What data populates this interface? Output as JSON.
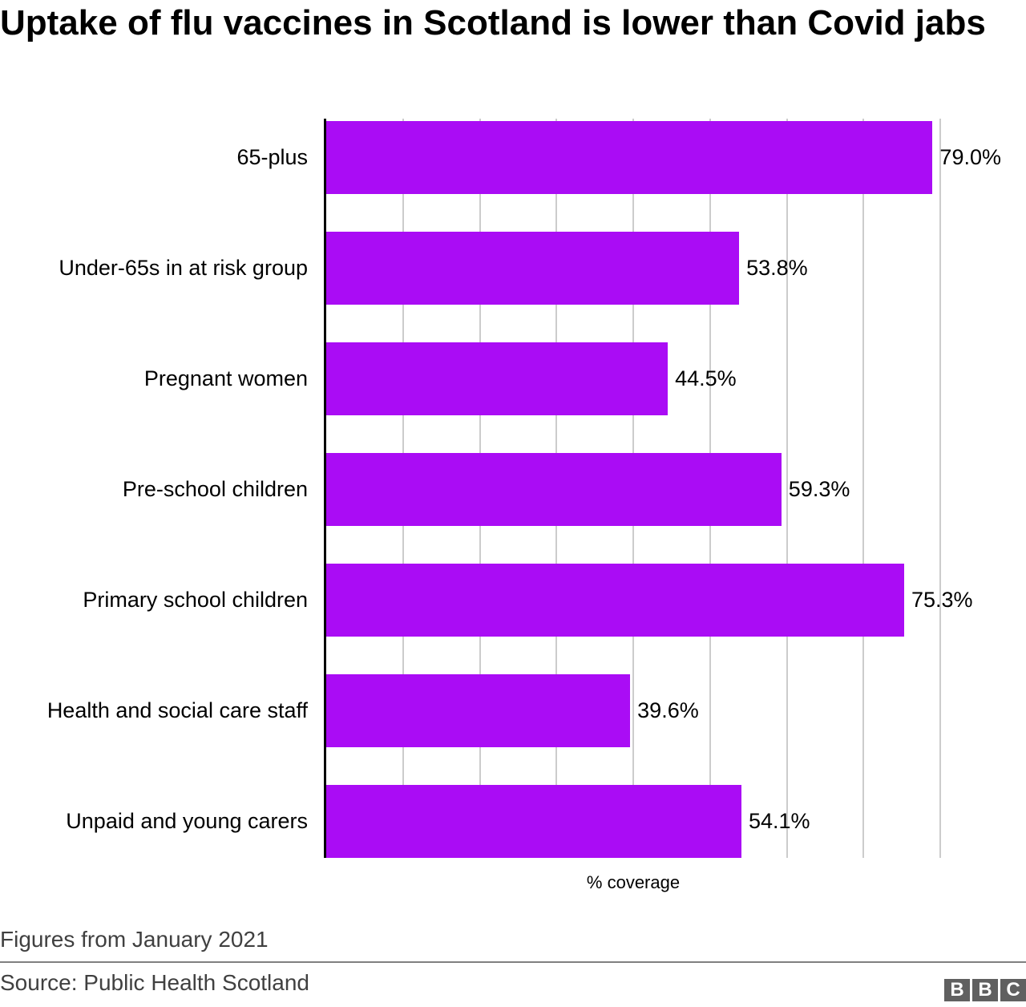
{
  "title": "Uptake of flu vaccines in Scotland is lower than Covid jabs",
  "note": "Figures from January 2021",
  "source": "Source: Public Health Scotland",
  "logo": [
    "B",
    "B",
    "C"
  ],
  "colors": {
    "bar": "#aa0cf5",
    "grid": "#cccccc",
    "axis": "#000000",
    "footer_text": "#404040"
  },
  "chart_data": {
    "type": "bar",
    "orientation": "horizontal",
    "title": "Uptake of flu vaccines in Scotland is lower than Covid jabs",
    "xlabel": "% coverage",
    "ylabel": "",
    "xlim": [
      0,
      80
    ],
    "grid": true,
    "gridline_step": 10,
    "legend": null,
    "categories": [
      "65-plus",
      "Under-65s in at risk group",
      "Pregnant women",
      "Pre-school children",
      "Primary school children",
      "Health and social care staff",
      "Unpaid and young carers"
    ],
    "values": [
      79.0,
      53.8,
      44.5,
      59.3,
      75.3,
      39.6,
      54.1
    ],
    "value_labels": [
      "79.0%",
      "53.8%",
      "44.5%",
      "59.3%",
      "75.3%",
      "39.6%",
      "54.1%"
    ]
  }
}
